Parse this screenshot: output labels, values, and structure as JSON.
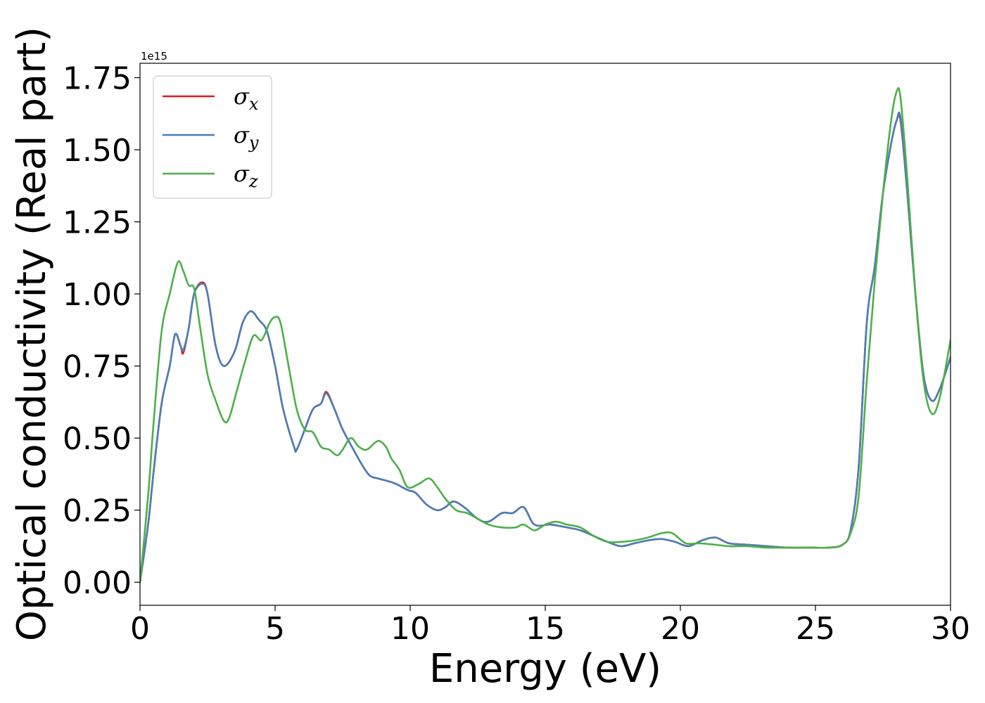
{
  "chart_data": {
    "type": "line",
    "xlabel": "Energy (eV)",
    "ylabel": "Optical conductivity (Real part)",
    "offset_text": "1e15",
    "y_scale": 1000000000000000.0,
    "xlim": [
      0,
      30
    ],
    "ylim": [
      -0.08,
      1.8
    ],
    "x_ticks": [
      0,
      5,
      10,
      15,
      20,
      25,
      30
    ],
    "x_tick_labels": [
      "0",
      "5",
      "10",
      "15",
      "20",
      "25",
      "30"
    ],
    "y_ticks": [
      0.0,
      0.25,
      0.5,
      0.75,
      1.0,
      1.25,
      1.5,
      1.75
    ],
    "y_tick_labels": [
      "0.00",
      "0.25",
      "0.50",
      "0.75",
      "1.00",
      "1.25",
      "1.50",
      "1.75"
    ],
    "grid": false,
    "legend_position": "upper-left",
    "series": [
      {
        "name": "σx",
        "legend_base": "σ",
        "legend_sub": "x",
        "color": "#e41a1c",
        "points": [
          [
            0,
            0.0
          ],
          [
            0.3,
            0.2
          ],
          [
            0.5,
            0.38
          ],
          [
            0.8,
            0.62
          ],
          [
            1.1,
            0.75
          ],
          [
            1.3,
            0.86
          ],
          [
            1.5,
            0.82
          ],
          [
            1.6,
            0.795
          ],
          [
            1.8,
            0.88
          ],
          [
            2.0,
            1.0
          ],
          [
            2.3,
            1.04
          ],
          [
            2.5,
            1.0
          ],
          [
            2.8,
            0.82
          ],
          [
            3.1,
            0.75
          ],
          [
            3.5,
            0.8
          ],
          [
            3.8,
            0.9
          ],
          [
            4.1,
            0.94
          ],
          [
            4.4,
            0.91
          ],
          [
            4.7,
            0.87
          ],
          [
            5.0,
            0.75
          ],
          [
            5.3,
            0.6
          ],
          [
            5.7,
            0.47
          ],
          [
            5.8,
            0.46
          ],
          [
            6.1,
            0.53
          ],
          [
            6.4,
            0.6
          ],
          [
            6.7,
            0.62
          ],
          [
            6.9,
            0.66
          ],
          [
            7.2,
            0.6
          ],
          [
            7.5,
            0.53
          ],
          [
            7.9,
            0.46
          ],
          [
            8.2,
            0.41
          ],
          [
            8.5,
            0.37
          ],
          [
            8.8,
            0.36
          ],
          [
            9.2,
            0.35
          ],
          [
            9.5,
            0.34
          ],
          [
            9.9,
            0.32
          ],
          [
            10.2,
            0.31
          ],
          [
            10.6,
            0.27
          ],
          [
            11.0,
            0.25
          ],
          [
            11.3,
            0.26
          ],
          [
            11.6,
            0.28
          ],
          [
            12.0,
            0.26
          ],
          [
            12.5,
            0.22
          ],
          [
            12.9,
            0.21
          ],
          [
            13.4,
            0.24
          ],
          [
            13.8,
            0.24
          ],
          [
            14.2,
            0.26
          ],
          [
            14.6,
            0.2
          ],
          [
            15.2,
            0.2
          ],
          [
            15.8,
            0.19
          ],
          [
            16.3,
            0.18
          ],
          [
            16.8,
            0.16
          ],
          [
            17.3,
            0.14
          ],
          [
            17.8,
            0.125
          ],
          [
            18.3,
            0.135
          ],
          [
            18.8,
            0.145
          ],
          [
            19.3,
            0.15
          ],
          [
            19.8,
            0.14
          ],
          [
            20.3,
            0.125
          ],
          [
            20.8,
            0.145
          ],
          [
            21.3,
            0.155
          ],
          [
            21.8,
            0.135
          ],
          [
            22.5,
            0.13
          ],
          [
            23.2,
            0.125
          ],
          [
            24.0,
            0.12
          ],
          [
            24.8,
            0.12
          ],
          [
            25.5,
            0.12
          ],
          [
            26.0,
            0.13
          ],
          [
            26.3,
            0.18
          ],
          [
            26.6,
            0.4
          ],
          [
            26.9,
            0.9
          ],
          [
            27.2,
            1.1
          ],
          [
            27.5,
            1.35
          ],
          [
            27.8,
            1.52
          ],
          [
            28.0,
            1.6
          ],
          [
            28.15,
            1.6
          ],
          [
            28.4,
            1.35
          ],
          [
            28.7,
            1.0
          ],
          [
            29.0,
            0.72
          ],
          [
            29.3,
            0.63
          ],
          [
            29.6,
            0.67
          ],
          [
            30.0,
            0.78
          ]
        ]
      },
      {
        "name": "σy",
        "legend_base": "σ",
        "legend_sub": "y",
        "color": "#4a7fb8",
        "points": [
          [
            0,
            0.0
          ],
          [
            0.3,
            0.2
          ],
          [
            0.5,
            0.38
          ],
          [
            0.8,
            0.62
          ],
          [
            1.1,
            0.75
          ],
          [
            1.3,
            0.86
          ],
          [
            1.5,
            0.82
          ],
          [
            1.6,
            0.805
          ],
          [
            1.8,
            0.88
          ],
          [
            2.0,
            1.0
          ],
          [
            2.3,
            1.035
          ],
          [
            2.5,
            1.0
          ],
          [
            2.8,
            0.82
          ],
          [
            3.1,
            0.75
          ],
          [
            3.5,
            0.8
          ],
          [
            3.8,
            0.9
          ],
          [
            4.1,
            0.94
          ],
          [
            4.4,
            0.91
          ],
          [
            4.7,
            0.87
          ],
          [
            5.0,
            0.75
          ],
          [
            5.3,
            0.6
          ],
          [
            5.7,
            0.47
          ],
          [
            5.8,
            0.46
          ],
          [
            6.1,
            0.53
          ],
          [
            6.4,
            0.6
          ],
          [
            6.7,
            0.62
          ],
          [
            6.9,
            0.655
          ],
          [
            7.2,
            0.6
          ],
          [
            7.5,
            0.53
          ],
          [
            7.9,
            0.46
          ],
          [
            8.2,
            0.41
          ],
          [
            8.5,
            0.37
          ],
          [
            8.8,
            0.36
          ],
          [
            9.2,
            0.35
          ],
          [
            9.5,
            0.34
          ],
          [
            9.9,
            0.32
          ],
          [
            10.2,
            0.31
          ],
          [
            10.6,
            0.27
          ],
          [
            11.0,
            0.25
          ],
          [
            11.3,
            0.26
          ],
          [
            11.6,
            0.28
          ],
          [
            12.0,
            0.26
          ],
          [
            12.5,
            0.22
          ],
          [
            12.9,
            0.21
          ],
          [
            13.4,
            0.24
          ],
          [
            13.8,
            0.24
          ],
          [
            14.2,
            0.26
          ],
          [
            14.6,
            0.2
          ],
          [
            15.2,
            0.2
          ],
          [
            15.8,
            0.19
          ],
          [
            16.3,
            0.18
          ],
          [
            16.8,
            0.16
          ],
          [
            17.3,
            0.14
          ],
          [
            17.8,
            0.125
          ],
          [
            18.3,
            0.135
          ],
          [
            18.8,
            0.145
          ],
          [
            19.3,
            0.15
          ],
          [
            19.8,
            0.14
          ],
          [
            20.3,
            0.125
          ],
          [
            20.8,
            0.145
          ],
          [
            21.3,
            0.155
          ],
          [
            21.8,
            0.135
          ],
          [
            22.5,
            0.13
          ],
          [
            23.2,
            0.125
          ],
          [
            24.0,
            0.12
          ],
          [
            24.8,
            0.12
          ],
          [
            25.5,
            0.12
          ],
          [
            26.0,
            0.13
          ],
          [
            26.3,
            0.18
          ],
          [
            26.6,
            0.4
          ],
          [
            26.9,
            0.9
          ],
          [
            27.2,
            1.1
          ],
          [
            27.5,
            1.35
          ],
          [
            27.8,
            1.52
          ],
          [
            28.0,
            1.6
          ],
          [
            28.15,
            1.61
          ],
          [
            28.4,
            1.35
          ],
          [
            28.7,
            1.0
          ],
          [
            29.0,
            0.72
          ],
          [
            29.3,
            0.63
          ],
          [
            29.6,
            0.67
          ],
          [
            30.0,
            0.78
          ]
        ]
      },
      {
        "name": "σz",
        "legend_base": "σ",
        "legend_sub": "z",
        "color": "#4daf4a",
        "points": [
          [
            0,
            0.0
          ],
          [
            0.3,
            0.3
          ],
          [
            0.5,
            0.55
          ],
          [
            0.8,
            0.87
          ],
          [
            1.1,
            1.0
          ],
          [
            1.4,
            1.11
          ],
          [
            1.6,
            1.08
          ],
          [
            1.8,
            1.03
          ],
          [
            2.0,
            1.02
          ],
          [
            2.2,
            0.9
          ],
          [
            2.5,
            0.72
          ],
          [
            2.8,
            0.63
          ],
          [
            3.1,
            0.56
          ],
          [
            3.3,
            0.57
          ],
          [
            3.6,
            0.67
          ],
          [
            3.9,
            0.77
          ],
          [
            4.2,
            0.855
          ],
          [
            4.5,
            0.84
          ],
          [
            4.8,
            0.9
          ],
          [
            5.0,
            0.92
          ],
          [
            5.2,
            0.9
          ],
          [
            5.5,
            0.75
          ],
          [
            5.8,
            0.6
          ],
          [
            6.1,
            0.53
          ],
          [
            6.4,
            0.52
          ],
          [
            6.7,
            0.47
          ],
          [
            7.0,
            0.46
          ],
          [
            7.3,
            0.44
          ],
          [
            7.5,
            0.46
          ],
          [
            7.8,
            0.5
          ],
          [
            8.1,
            0.47
          ],
          [
            8.4,
            0.46
          ],
          [
            8.8,
            0.49
          ],
          [
            9.1,
            0.47
          ],
          [
            9.3,
            0.43
          ],
          [
            9.6,
            0.39
          ],
          [
            9.9,
            0.33
          ],
          [
            10.3,
            0.34
          ],
          [
            10.7,
            0.36
          ],
          [
            11.0,
            0.33
          ],
          [
            11.3,
            0.29
          ],
          [
            11.7,
            0.25
          ],
          [
            12.1,
            0.24
          ],
          [
            12.5,
            0.22
          ],
          [
            12.9,
            0.2
          ],
          [
            13.4,
            0.19
          ],
          [
            13.9,
            0.19
          ],
          [
            14.2,
            0.2
          ],
          [
            14.6,
            0.18
          ],
          [
            15.0,
            0.2
          ],
          [
            15.4,
            0.21
          ],
          [
            15.8,
            0.2
          ],
          [
            16.3,
            0.19
          ],
          [
            16.8,
            0.16
          ],
          [
            17.3,
            0.14
          ],
          [
            17.8,
            0.14
          ],
          [
            18.3,
            0.145
          ],
          [
            18.8,
            0.155
          ],
          [
            19.3,
            0.17
          ],
          [
            19.7,
            0.17
          ],
          [
            20.2,
            0.135
          ],
          [
            20.7,
            0.135
          ],
          [
            21.3,
            0.13
          ],
          [
            21.8,
            0.125
          ],
          [
            22.5,
            0.125
          ],
          [
            23.2,
            0.12
          ],
          [
            24.0,
            0.12
          ],
          [
            24.8,
            0.12
          ],
          [
            25.5,
            0.12
          ],
          [
            26.0,
            0.13
          ],
          [
            26.3,
            0.17
          ],
          [
            26.6,
            0.3
          ],
          [
            26.9,
            0.7
          ],
          [
            27.2,
            1.05
          ],
          [
            27.5,
            1.35
          ],
          [
            27.8,
            1.6
          ],
          [
            28.0,
            1.7
          ],
          [
            28.15,
            1.68
          ],
          [
            28.4,
            1.4
          ],
          [
            28.7,
            1.0
          ],
          [
            29.0,
            0.7
          ],
          [
            29.3,
            0.585
          ],
          [
            29.6,
            0.64
          ],
          [
            30.0,
            0.84
          ]
        ]
      }
    ]
  }
}
